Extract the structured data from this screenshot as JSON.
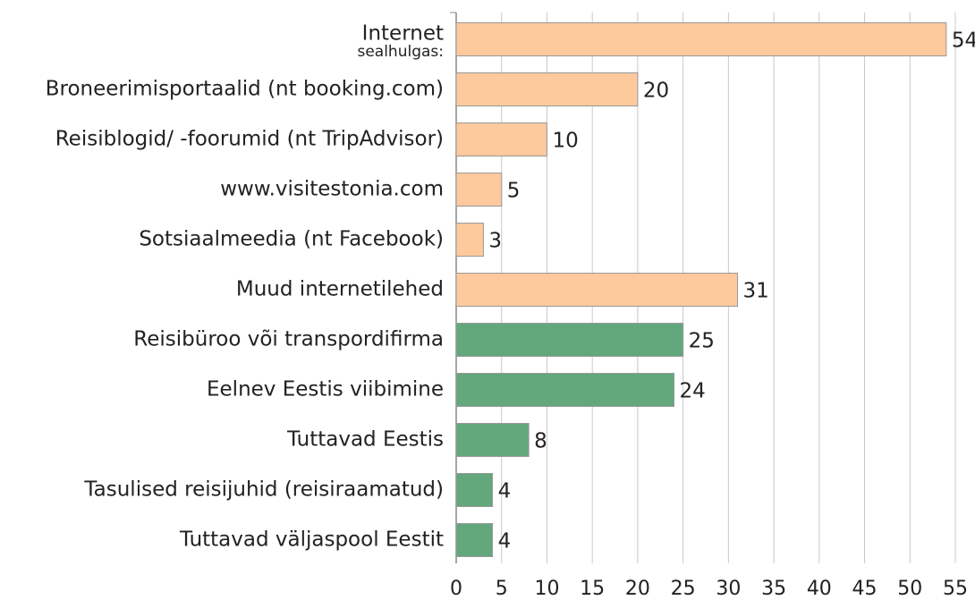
{
  "chart_data": {
    "type": "bar",
    "orientation": "horizontal",
    "categories": [
      "Internet",
      "Broneerimisportaalid (nt booking.com)",
      "Reisiblogid/ -foorumid (nt TripAdvisor)",
      "www.visitestonia.com",
      "Sotsiaalmeedia (nt Facebook)",
      "Muud internetilehed",
      "Reisibüroo või transpordifirma",
      "Eelnev Eestis viibimine",
      "Tuttavad Eestis",
      "Tasulised reisijuhid (reisiraamatud)",
      "Tuttavad väljaspool Eestit"
    ],
    "category_note": "sealhulgas:",
    "values": [
      54,
      20,
      10,
      5,
      3,
      31,
      25,
      24,
      8,
      4,
      4
    ],
    "colors": [
      "#fdc99d",
      "#fdc99d",
      "#fdc99d",
      "#fdc99d",
      "#fdc99d",
      "#fdc99d",
      "#63a77c",
      "#63a77c",
      "#63a77c",
      "#63a77c",
      "#63a77c"
    ],
    "xlim": [
      0,
      55
    ],
    "xticks": [
      0,
      5,
      10,
      15,
      20,
      25,
      30,
      35,
      40,
      45,
      50,
      55
    ],
    "grid": true
  }
}
